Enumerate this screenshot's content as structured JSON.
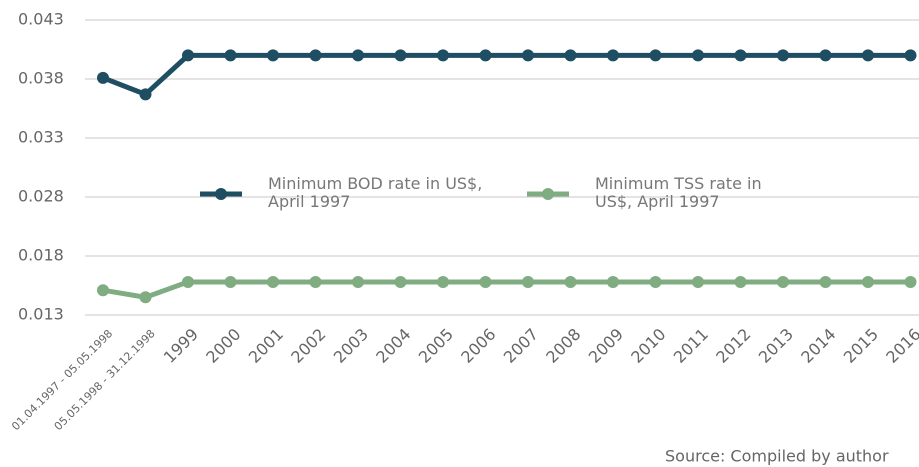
{
  "chart_data": {
    "type": "line",
    "categories": [
      "01.04.1997 - 05.05.1998",
      "05.05.1998 - 31.12.1998",
      "1999",
      "2000",
      "2001",
      "2002",
      "2003",
      "2004",
      "2005",
      "2006",
      "2007",
      "2008",
      "2009",
      "2010",
      "2011",
      "2012",
      "2013",
      "2014",
      "2015",
      "2016"
    ],
    "series": [
      {
        "name": "Minimum BOD rate in US$, April 1997",
        "color": "#1f4e63",
        "values": [
          0.0381,
          0.0367,
          0.04,
          0.04,
          0.04,
          0.04,
          0.04,
          0.04,
          0.04,
          0.04,
          0.04,
          0.04,
          0.04,
          0.04,
          0.04,
          0.04,
          0.04,
          0.04,
          0.04,
          0.04
        ]
      },
      {
        "name": "Minimum TSS rate in US$, April 1997",
        "color": "#7fac80",
        "values": [
          0.0151,
          0.0145,
          0.0158,
          0.0158,
          0.0158,
          0.0158,
          0.0158,
          0.0158,
          0.0158,
          0.0158,
          0.0158,
          0.0158,
          0.0158,
          0.0158,
          0.0158,
          0.0158,
          0.0158,
          0.0158,
          0.0158,
          0.0158
        ]
      }
    ],
    "ylim": [
      0.013,
      0.043
    ],
    "yticks": [
      0.013,
      0.018,
      0.028,
      0.033,
      0.038,
      0.043
    ],
    "grid": true,
    "legend": "center",
    "source": "Source: Compiled by author"
  }
}
